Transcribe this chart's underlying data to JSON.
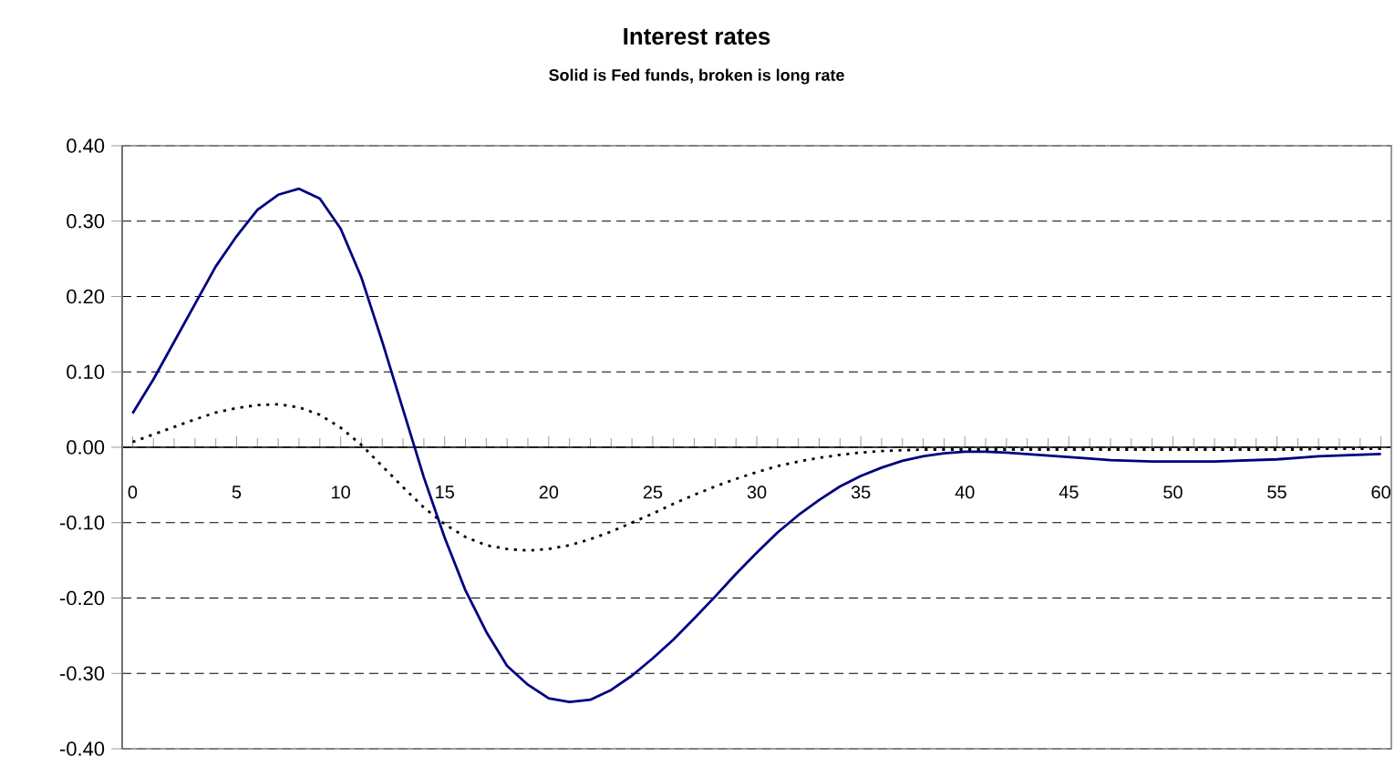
{
  "chart_data": {
    "type": "line",
    "title": "Interest rates",
    "subtitle": "Solid is Fed funds, broken is long rate",
    "x": [
      0,
      1,
      2,
      3,
      4,
      5,
      6,
      7,
      8,
      9,
      10,
      11,
      12,
      13,
      14,
      15,
      16,
      17,
      18,
      19,
      20,
      21,
      22,
      23,
      24,
      25,
      26,
      27,
      28,
      29,
      30,
      31,
      32,
      33,
      34,
      35,
      36,
      37,
      38,
      39,
      40,
      41,
      42,
      43,
      44,
      45,
      46,
      47,
      48,
      49,
      50,
      51,
      52,
      53,
      54,
      55,
      56,
      57,
      58,
      59,
      60
    ],
    "series": [
      {
        "color": "#000080",
        "line_style": "solid",
        "values": [
          0.045,
          0.09,
          0.14,
          0.19,
          0.24,
          0.28,
          0.315,
          0.335,
          0.343,
          0.33,
          0.29,
          0.225,
          0.14,
          0.05,
          -0.04,
          -0.12,
          -0.19,
          -0.245,
          -0.29,
          -0.315,
          -0.333,
          -0.338,
          -0.335,
          -0.322,
          -0.303,
          -0.28,
          -0.255,
          -0.227,
          -0.198,
          -0.168,
          -0.14,
          -0.113,
          -0.09,
          -0.07,
          -0.052,
          -0.038,
          -0.027,
          -0.018,
          -0.012,
          -0.008,
          -0.006,
          -0.006,
          -0.007,
          -0.009,
          -0.011,
          -0.013,
          -0.015,
          -0.017,
          -0.018,
          -0.019,
          -0.019,
          -0.019,
          -0.019,
          -0.018,
          -0.017,
          -0.016,
          -0.014,
          -0.012,
          -0.011,
          -0.01,
          -0.009
        ]
      },
      {
        "color": "#000000",
        "line_style": "dotted",
        "values": [
          0.007,
          0.017,
          0.027,
          0.037,
          0.046,
          0.052,
          0.056,
          0.057,
          0.053,
          0.043,
          0.026,
          0.003,
          -0.025,
          -0.053,
          -0.08,
          -0.102,
          -0.119,
          -0.13,
          -0.135,
          -0.137,
          -0.135,
          -0.13,
          -0.122,
          -0.112,
          -0.1,
          -0.088,
          -0.075,
          -0.063,
          -0.052,
          -0.042,
          -0.033,
          -0.025,
          -0.019,
          -0.014,
          -0.01,
          -0.007,
          -0.005,
          -0.004,
          -0.003,
          -0.003,
          -0.003,
          -0.003,
          -0.003,
          -0.003,
          -0.003,
          -0.003,
          -0.003,
          -0.003,
          -0.003,
          -0.003,
          -0.003,
          -0.003,
          -0.003,
          -0.003,
          -0.003,
          -0.003,
          -0.003,
          -0.002,
          -0.002,
          -0.002,
          -0.002
        ]
      }
    ],
    "xlim": [
      -0.5,
      60.5
    ],
    "xticks": [
      0,
      5,
      10,
      15,
      20,
      25,
      30,
      35,
      40,
      45,
      50,
      55,
      60
    ],
    "ylim": [
      -0.4,
      0.4
    ],
    "yticks": [
      {
        "value": -0.4,
        "label": "-0.40"
      },
      {
        "value": -0.3,
        "label": "-0.30"
      },
      {
        "value": -0.2,
        "label": "-0.20"
      },
      {
        "value": -0.1,
        "label": "-0.10"
      },
      {
        "value": 0,
        "label": "0.00"
      },
      {
        "value": 0.1,
        "label": "0.10"
      },
      {
        "value": 0.2,
        "label": "0.20"
      },
      {
        "value": 0.3,
        "label": "0.30"
      },
      {
        "value": 0.4,
        "label": "0.40"
      }
    ],
    "grid": "y"
  }
}
